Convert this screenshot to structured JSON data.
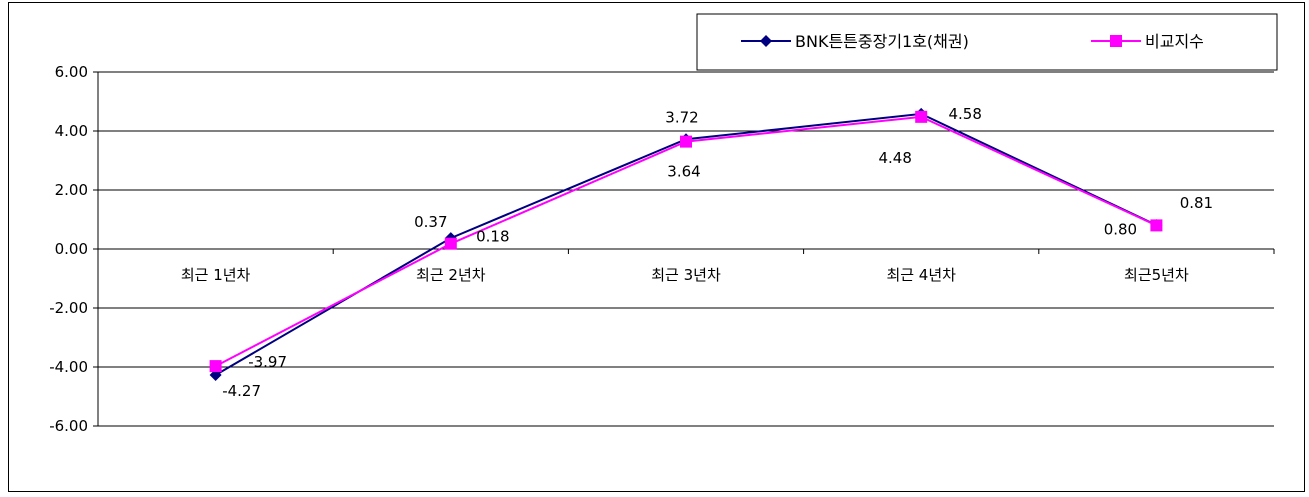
{
  "chart_data": {
    "type": "line",
    "categories": [
      "최근 1년차",
      "최근 2년차",
      "최근 3년차",
      "최근 4년차",
      "최근5년차"
    ],
    "series": [
      {
        "name": "BNK튼튼중장기1호(채권)",
        "values": [
          -4.27,
          0.37,
          3.72,
          4.58,
          0.81
        ],
        "labels": [
          "-4.27",
          "0.37",
          "3.72",
          "4.58",
          "0.81"
        ],
        "color": "#000080",
        "marker": "diamond"
      },
      {
        "name": "비교지수",
        "values": [
          -3.97,
          0.18,
          3.64,
          4.48,
          0.8
        ],
        "labels": [
          "-3.97",
          "0.18",
          "3.64",
          "4.48",
          "0.80"
        ],
        "color": "#ff00ff",
        "marker": "square"
      }
    ],
    "ylim": [
      -6,
      6
    ],
    "yticks": [
      "6.00",
      "4.00",
      "2.00",
      "0.00",
      "-2.00",
      "-4.00",
      "-6.00"
    ],
    "ytick_values": [
      6,
      4,
      2,
      0,
      -2,
      -4,
      -6
    ],
    "grid": true,
    "legend_position": "top-right"
  }
}
